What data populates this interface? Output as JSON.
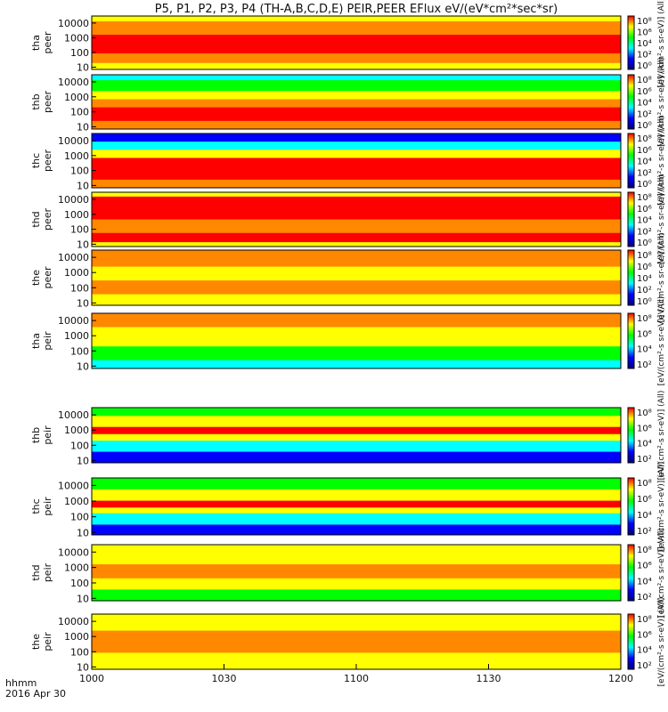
{
  "chart_data": {
    "type": "heatmap",
    "title": "P5, P1, P2, P3, P4 (TH-A,B,C,D,E) PEIR,PEER EFlux eV/(eV*cm²*sec*sr)",
    "x_corner_label_1": "hhmm",
    "x_corner_label_2": "2016 Apr 30",
    "x_ticks": [
      "1000",
      "1030",
      "1100",
      "1130",
      "1200"
    ],
    "x_range_minutes": [
      600,
      720
    ],
    "y_scale": "log",
    "y_ticks": [
      "10",
      "100",
      "1000",
      "10000"
    ],
    "y_range_eV": [
      7,
      30000
    ],
    "colorbar_label": "[eV/(cm²-s sr-eV)] (All)",
    "colorbar_ticks": [
      "10⁸",
      "10⁶",
      "10⁴",
      "10²"
    ],
    "colorbar_colors": [
      "#ff0000",
      "#ffff00",
      "#00ff00",
      "#00ffff",
      "#0000ff",
      "#000080"
    ],
    "panels": [
      {
        "label_1": "tha",
        "label_2": "peer",
        "colorbar_ticks": [
          "10⁸",
          "10⁶",
          "10⁴",
          "10²",
          "10⁰"
        ]
      },
      {
        "label_1": "thb",
        "label_2": "peer",
        "colorbar_ticks": [
          "10⁸",
          "10⁶",
          "10⁴",
          "10²",
          "10⁰"
        ]
      },
      {
        "label_1": "thc",
        "label_2": "peer",
        "colorbar_ticks": [
          "10⁸",
          "10⁶",
          "10⁴",
          "10²",
          "10⁰"
        ]
      },
      {
        "label_1": "thd",
        "label_2": "peer",
        "colorbar_ticks": [
          "10⁸",
          "10⁶",
          "10⁴",
          "10²",
          "10⁰"
        ]
      },
      {
        "label_1": "the",
        "label_2": "peer",
        "colorbar_ticks": [
          "10⁸",
          "10⁶",
          "10⁴",
          "10²",
          "10⁰"
        ]
      },
      {
        "label_1": "tha",
        "label_2": "peir",
        "colorbar_ticks": [
          "10⁸",
          "10⁶",
          "10⁴",
          "10²"
        ]
      },
      {
        "label_1": "thb",
        "label_2": "peir",
        "colorbar_ticks": [
          "10⁸",
          "10⁶",
          "10⁴",
          "10²"
        ]
      },
      {
        "label_1": "thc",
        "label_2": "peir",
        "colorbar_ticks": [
          "10⁸",
          "10⁶",
          "10⁴",
          "10²"
        ]
      },
      {
        "label_1": "thd",
        "label_2": "peir",
        "colorbar_ticks": [
          "10⁸",
          "10⁶",
          "10⁴",
          "10²"
        ]
      },
      {
        "label_1": "the",
        "label_2": "peir",
        "colorbar_ticks": [
          "10⁸",
          "10⁶",
          "10⁴",
          "10²"
        ]
      }
    ]
  }
}
